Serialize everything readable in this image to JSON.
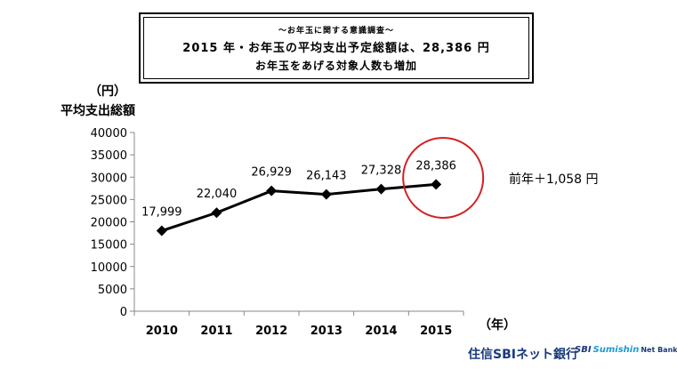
{
  "header": {
    "subtitle": "～お年玉に関する意識調査～",
    "title": "2015 年・お年玉の平均支出予定総額は、28,386 円",
    "line3": "お年玉をあげる対象人数も増加"
  },
  "annotation": {
    "text": "前年＋1,058 円"
  },
  "brand": {
    "jp_name": "住信SBIネット銀行",
    "logo_sbi": "SBI",
    "logo_sumishin": "Sumishin",
    "logo_net": "Net Bank"
  },
  "chart_data": {
    "type": "line",
    "title": "",
    "unit_label": "（円）",
    "ylabel": "平均支出総額",
    "xlabel": "（年）",
    "categories": [
      "2010",
      "2011",
      "2012",
      "2013",
      "2014",
      "2015"
    ],
    "series": [
      {
        "values": [
          17999,
          22040,
          26929,
          26143,
          27328,
          28386
        ],
        "labels": [
          "17,999",
          "22,040",
          "26,929",
          "26,143",
          "27,328",
          "28,386"
        ],
        "color": "#000000",
        "marker": "diamond"
      }
    ],
    "ylim": [
      0,
      40000
    ],
    "yticks": [
      0,
      5000,
      10000,
      15000,
      20000,
      25000,
      30000,
      35000,
      40000
    ],
    "grid": false,
    "legend": "none",
    "highlight": {
      "category": "2015",
      "shape": "circle",
      "color": "#d42020"
    }
  }
}
